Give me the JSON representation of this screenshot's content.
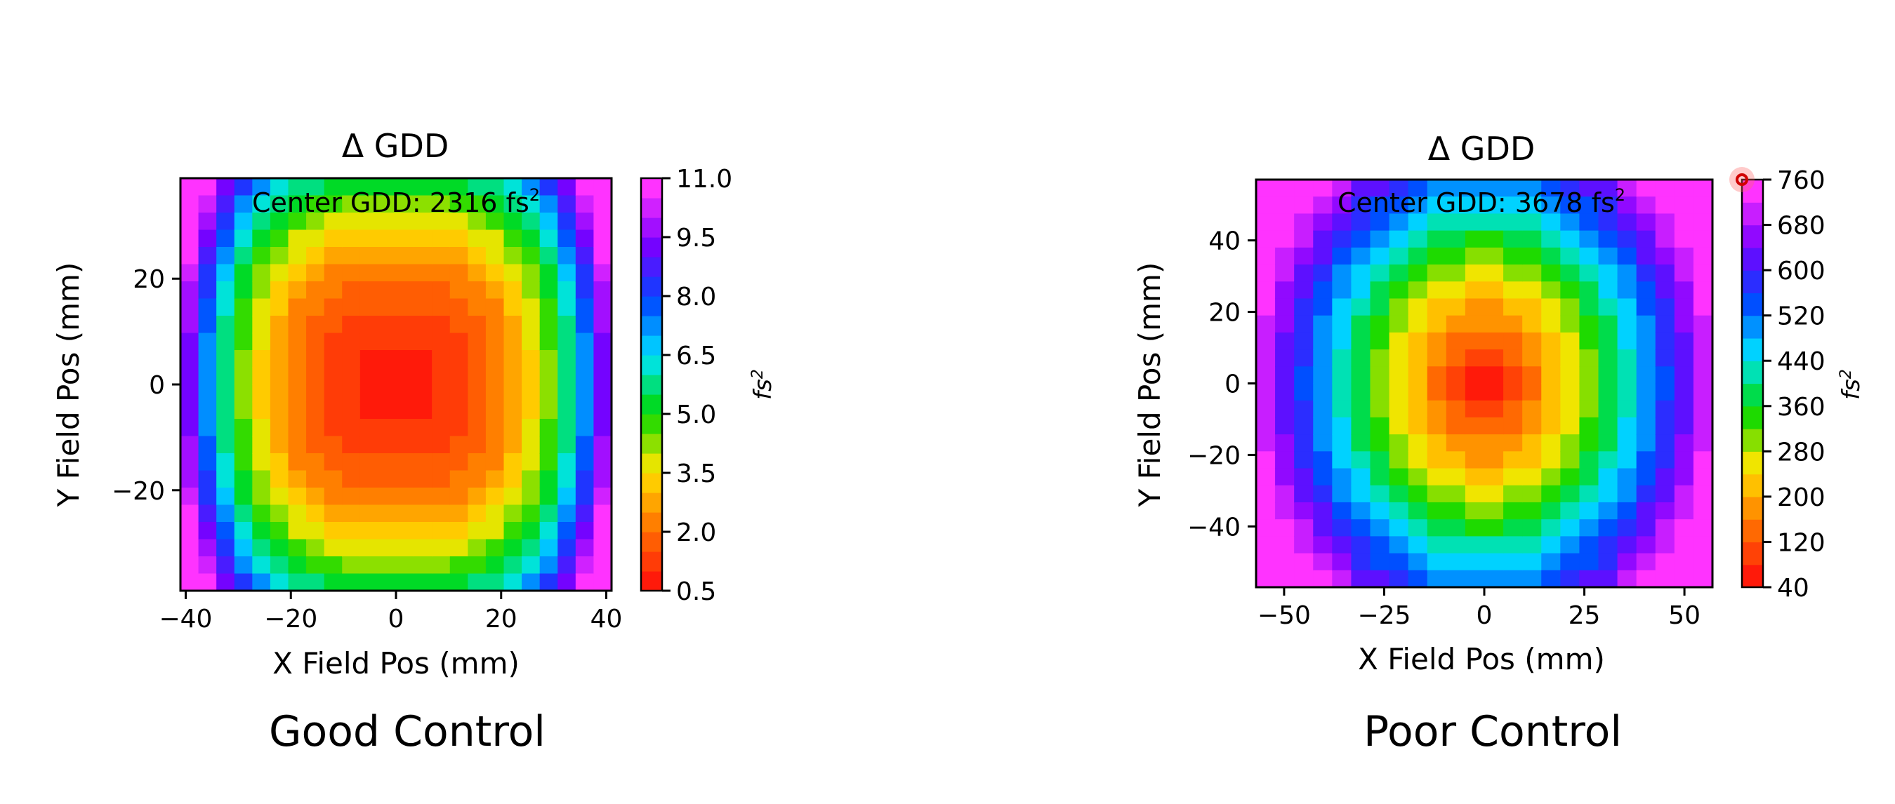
{
  "captions": {
    "left": "Good Control",
    "right": "Poor Control"
  },
  "chart_data": [
    {
      "type": "heatmap",
      "title": "Δ GDD",
      "annotation": {
        "text": "Center GDD: 2316 fs",
        "sup": "2"
      },
      "xlabel": "X Field Pos (mm)",
      "ylabel": "Y Field Pos (mm)",
      "xlim": [
        -41,
        41
      ],
      "ylim": [
        -39,
        39
      ],
      "xticks": [
        -40,
        -20,
        0,
        20,
        40
      ],
      "yticks": [
        20,
        0,
        -20
      ],
      "colorbar": {
        "label": "fs",
        "label_sup": "2",
        "range": [
          0.5,
          11.0
        ],
        "levels": 21,
        "ticks": [
          "11.0",
          "9.5",
          "8.0",
          "6.5",
          "5.0",
          "3.5",
          "2.0",
          "0.5"
        ],
        "colormap": [
          "#ff1a0a",
          "#ff7a00",
          "#ffe600",
          "#00d800",
          "#00e5ff",
          "#0046ff",
          "#7a00ff",
          "#ff33ff"
        ]
      },
      "model": {
        "description_values": "fs^2 deviation peaked low at center, rising to corners",
        "center": 0.5,
        "corner": 11.0
      }
    },
    {
      "type": "heatmap",
      "title": "Δ GDD",
      "annotation": {
        "text": "Center GDD: 3678 fs",
        "sup": "2"
      },
      "xlabel": "X Field Pos (mm)",
      "ylabel": "Y Field Pos (mm)",
      "xlim": [
        -57,
        57
      ],
      "ylim": [
        -57,
        57
      ],
      "xticks": [
        -50,
        -25,
        0,
        25,
        50
      ],
      "yticks": [
        40,
        20,
        0,
        -20,
        -40
      ],
      "colorbar": {
        "label": "fs",
        "label_sup": "2",
        "range": [
          40,
          760
        ],
        "levels": 18,
        "ticks": [
          "760",
          "680",
          "600",
          "520",
          "440",
          "360",
          "280",
          "200",
          "120",
          "40"
        ],
        "colormap": [
          "#ff1a0a",
          "#ff7a00",
          "#ffe600",
          "#00d800",
          "#00e5ff",
          "#0046ff",
          "#7a00ff",
          "#ff33ff"
        ]
      },
      "model": {
        "description_values": "fs^2 deviation minimal at center, rising radially to corners",
        "center": 40,
        "corner": 760
      }
    }
  ]
}
